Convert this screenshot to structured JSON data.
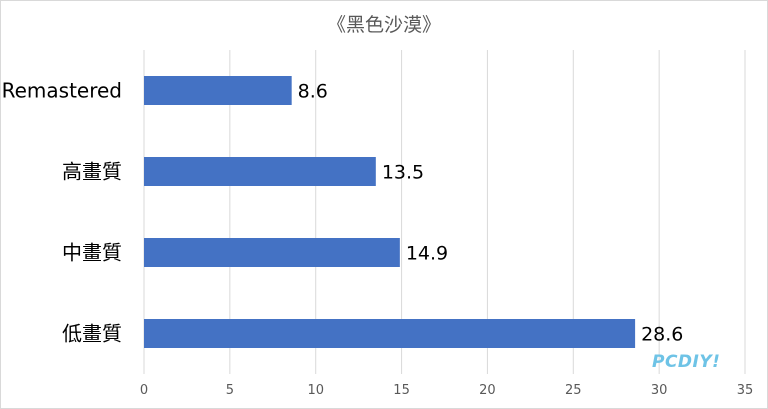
{
  "title": "《黑色沙漠》",
  "watermark": "PCDIY!",
  "colors": {
    "bar": "#4472c4",
    "grid": "#d9d9d9",
    "text": "#000000",
    "axis_text": "#595959",
    "watermark": "#6ec3e6"
  },
  "chart_data": {
    "type": "bar",
    "orientation": "horizontal",
    "title": "《黑色沙漠》",
    "categories": [
      "Remastered",
      "高畫質",
      "中畫質",
      "低畫質"
    ],
    "values": [
      8.6,
      13.5,
      14.9,
      28.6
    ],
    "xlim": [
      0,
      35
    ],
    "xticks": [
      0,
      5,
      10,
      15,
      20,
      25,
      30,
      35
    ],
    "grid": true,
    "data_labels": true
  }
}
